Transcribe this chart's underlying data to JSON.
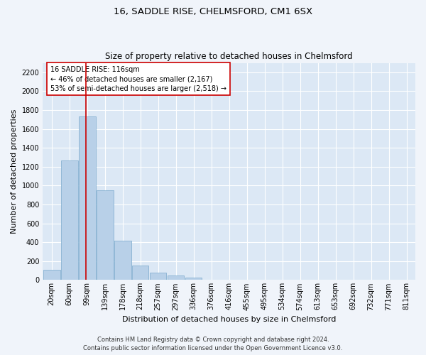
{
  "title": "16, SADDLE RISE, CHELMSFORD, CM1 6SX",
  "subtitle": "Size of property relative to detached houses in Chelmsford",
  "xlabel": "Distribution of detached houses by size in Chelmsford",
  "ylabel": "Number of detached properties",
  "bar_color": "#b8d0e8",
  "bar_edge_color": "#7aaacc",
  "background_color": "#dce8f5",
  "grid_color": "#ffffff",
  "categories": [
    "20sqm",
    "60sqm",
    "99sqm",
    "139sqm",
    "178sqm",
    "218sqm",
    "257sqm",
    "297sqm",
    "336sqm",
    "376sqm",
    "416sqm",
    "455sqm",
    "495sqm",
    "534sqm",
    "574sqm",
    "613sqm",
    "653sqm",
    "692sqm",
    "732sqm",
    "771sqm",
    "811sqm"
  ],
  "values": [
    110,
    1270,
    1730,
    950,
    415,
    150,
    75,
    45,
    25,
    0,
    0,
    0,
    0,
    0,
    0,
    0,
    0,
    0,
    0,
    0,
    0
  ],
  "ylim": [
    0,
    2300
  ],
  "yticks": [
    0,
    200,
    400,
    600,
    800,
    1000,
    1200,
    1400,
    1600,
    1800,
    2000,
    2200
  ],
  "annotation_text": "16 SADDLE RISE: 116sqm\n← 46% of detached houses are smaller (2,167)\n53% of semi-detached houses are larger (2,518) →",
  "annotation_box_color": "#ffffff",
  "annotation_border_color": "#cc0000",
  "footer_line1": "Contains HM Land Registry data © Crown copyright and database right 2024.",
  "footer_line2": "Contains public sector information licensed under the Open Government Licence v3.0.",
  "red_line_color": "#cc0000",
  "title_fontsize": 9.5,
  "subtitle_fontsize": 8.5,
  "xlabel_fontsize": 8,
  "ylabel_fontsize": 8,
  "tick_fontsize": 7,
  "footer_fontsize": 6,
  "annotation_fontsize": 7
}
